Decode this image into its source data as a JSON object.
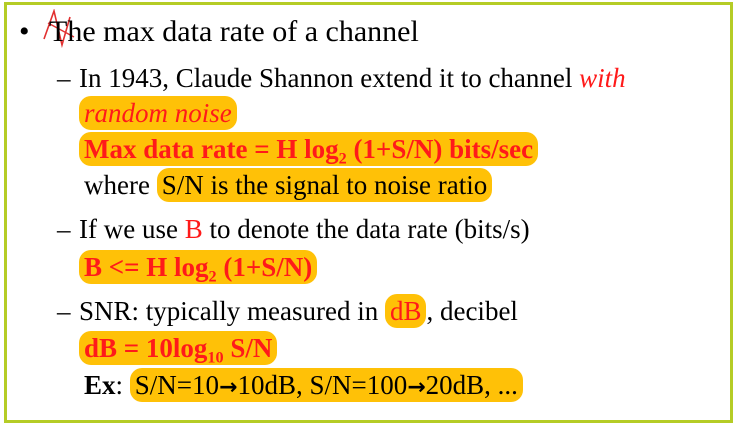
{
  "slide": {
    "title": {
      "bullet": "•",
      "text": "The max data rate of a channel"
    },
    "item1": {
      "dash": "–",
      "text_a": "In 1943, Claude Shannon extend it to channel ",
      "text_red_1": "with",
      "text_red_2": "random noise",
      "formula_a": "Max data rate = H log",
      "formula_sub": "2",
      "formula_b": " (1+S/N) bits/sec",
      "where_a": "where ",
      "where_b": "S/N is the signal to noise ratio"
    },
    "item2": {
      "dash": "–",
      "text_a": "If we use ",
      "text_b": "B",
      "text_c": " to denote the data rate (bits/s)",
      "formula_a": "B <= H log",
      "formula_sub": "2",
      "formula_b": " (1+S/N)"
    },
    "item3": {
      "dash": "–",
      "text_a": "SNR: typically measured in ",
      "text_b": "dB",
      "text_c": ", decibel",
      "formula_a": "dB = 10log",
      "formula_sub": "10",
      "formula_b": " S/N",
      "ex_label": "Ex",
      "ex_colon": ": ",
      "ex_a": "S/N=10",
      "ex_arrow_1": "→",
      "ex_b": "10dB, S/N=100",
      "ex_arrow_2": "→",
      "ex_c": "20dB, ..."
    }
  },
  "colors": {
    "frame": "#b5cc26",
    "highlight": "#ffc107",
    "red": "#ff1a1a"
  }
}
